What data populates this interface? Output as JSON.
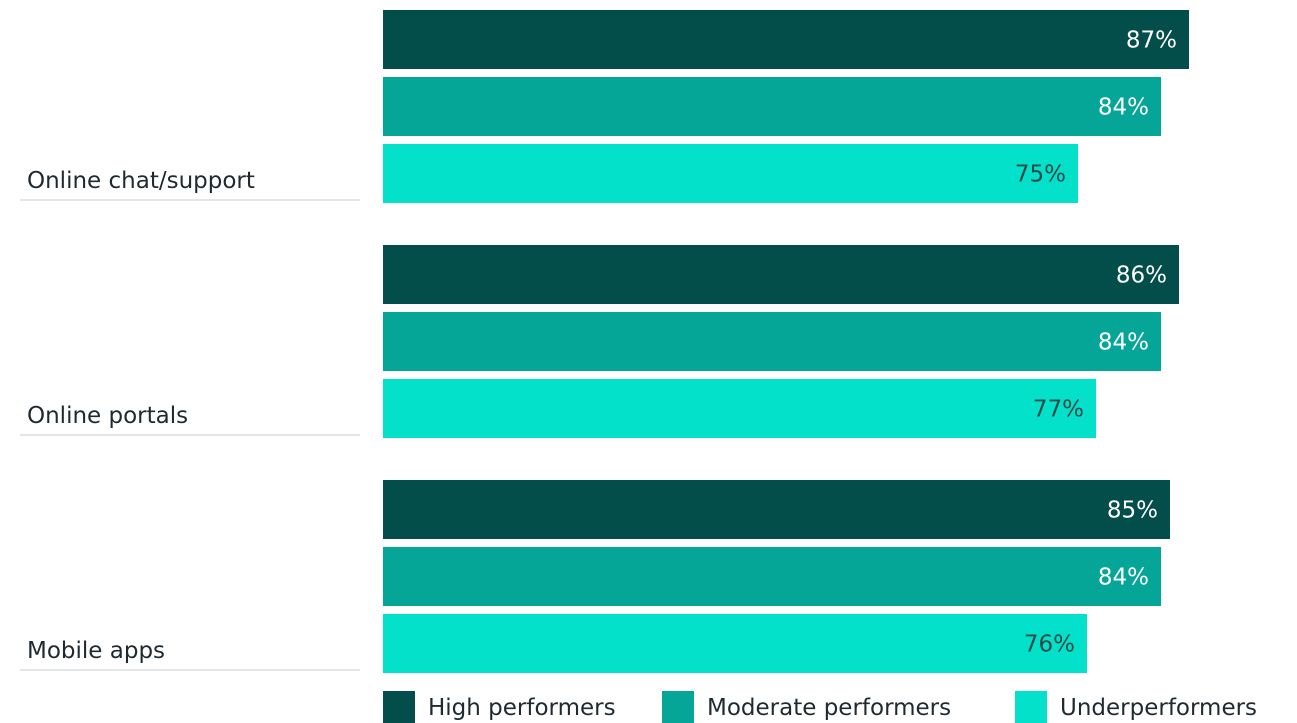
{
  "chart_data": {
    "type": "bar",
    "orientation": "horizontal",
    "categories": [
      "Online chat/support",
      "Online portals",
      "Mobile apps"
    ],
    "series": [
      {
        "name": "High performers",
        "values": [
          87,
          86,
          85
        ],
        "color": "#034d4b",
        "label_color": "#ffffff"
      },
      {
        "name": "Moderate performers",
        "values": [
          84,
          84,
          84
        ],
        "color": "#05a597",
        "label_color": "#ffffff"
      },
      {
        "name": "Underperformers",
        "values": [
          75,
          77,
          76
        ],
        "color": "#04e1cb",
        "label_color": "#2a4a48"
      }
    ],
    "value_suffix": "%",
    "xlim": [
      0,
      100
    ],
    "grid": false,
    "legend_position": "bottom"
  }
}
